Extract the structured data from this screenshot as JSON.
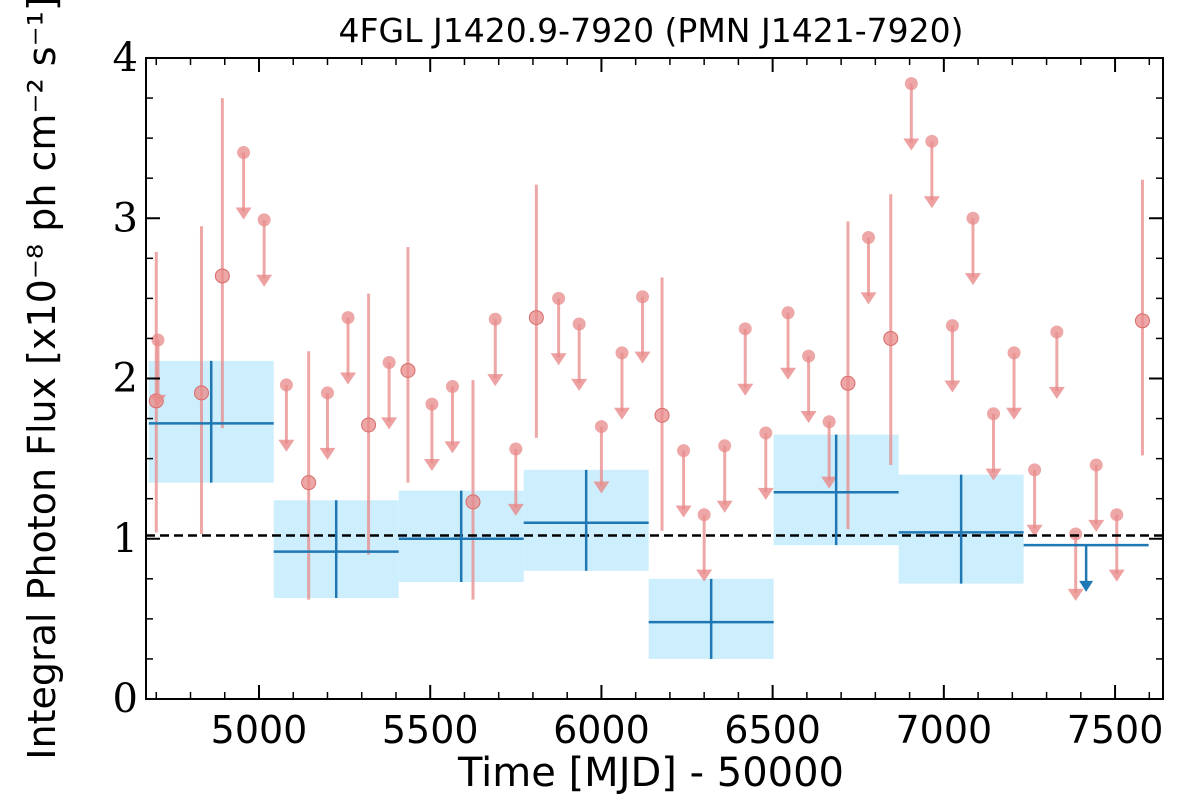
{
  "chart_data": {
    "type": "scatter",
    "title": "4FGL J1420.9-7920 (PMN J1421-7920)",
    "xlabel": "Time [MJD] - 50000",
    "ylabel": "Integral Photon Flux [x10⁻⁸ ph cm⁻² s⁻¹]",
    "xlim": [
      4670,
      7640
    ],
    "ylim": [
      0,
      4
    ],
    "xticks": [
      5000,
      5500,
      6000,
      6500,
      7000,
      7500
    ],
    "yticks": [
      0,
      1,
      2,
      3,
      4
    ],
    "xtick_labels": [
      "5000",
      "5500",
      "6000",
      "6500",
      "7000",
      "7500"
    ],
    "ytick_labels": [
      "0",
      "1",
      "2",
      "3",
      "4"
    ],
    "grid": false,
    "reference_line": {
      "y": 1.02,
      "style": "dashed",
      "color": "#000000"
    },
    "colors": {
      "short_bins": "#e88a8a",
      "long_bins": "#1f77b4",
      "long_bins_band": "#cdeefc"
    },
    "series": [
      {
        "points": [
          {
            "x": 4700,
            "y": 1.86,
            "yerr_lo": 0.82,
            "yerr_hi": 0.93
          },
          {
            "x": 4832,
            "y": 1.91,
            "yerr_lo": 0.88,
            "yerr_hi": 1.04
          },
          {
            "x": 4893,
            "y": 2.64,
            "yerr_lo": 0.95,
            "yerr_hi": 1.11
          },
          {
            "x": 5145,
            "y": 1.35,
            "yerr_lo": 0.73,
            "yerr_hi": 0.82
          },
          {
            "x": 5320,
            "y": 1.71,
            "yerr_lo": 0.81,
            "yerr_hi": 0.82
          },
          {
            "x": 5435,
            "y": 2.05,
            "yerr_lo": 0.7,
            "yerr_hi": 0.77
          },
          {
            "x": 5625,
            "y": 1.23,
            "yerr_lo": 0.61,
            "yerr_hi": 0.76
          },
          {
            "x": 5810,
            "y": 2.38,
            "yerr_lo": 0.75,
            "yerr_hi": 0.83
          },
          {
            "x": 6177,
            "y": 1.77,
            "yerr_lo": 0.72,
            "yerr_hi": 0.86
          },
          {
            "x": 6720,
            "y": 1.97,
            "yerr_lo": 0.91,
            "yerr_hi": 1.01
          },
          {
            "x": 6845,
            "y": 2.25,
            "yerr_lo": 0.79,
            "yerr_hi": 0.9
          },
          {
            "x": 7580,
            "y": 2.36,
            "yerr_lo": 0.84,
            "yerr_hi": 0.88
          }
        ],
        "upper_limits": [
          {
            "x": 4705,
            "y": 2.24
          },
          {
            "x": 4955,
            "y": 3.41
          },
          {
            "x": 5015,
            "y": 2.99
          },
          {
            "x": 5080,
            "y": 1.96
          },
          {
            "x": 5200,
            "y": 1.91
          },
          {
            "x": 5260,
            "y": 2.38
          },
          {
            "x": 5380,
            "y": 2.1
          },
          {
            "x": 5505,
            "y": 1.84
          },
          {
            "x": 5565,
            "y": 1.95
          },
          {
            "x": 5690,
            "y": 2.37
          },
          {
            "x": 5750,
            "y": 1.56
          },
          {
            "x": 5875,
            "y": 2.5
          },
          {
            "x": 5935,
            "y": 2.34
          },
          {
            "x": 6000,
            "y": 1.7
          },
          {
            "x": 6060,
            "y": 2.16
          },
          {
            "x": 6120,
            "y": 2.51
          },
          {
            "x": 6240,
            "y": 1.55
          },
          {
            "x": 6300,
            "y": 1.15
          },
          {
            "x": 6360,
            "y": 1.58
          },
          {
            "x": 6420,
            "y": 2.31
          },
          {
            "x": 6480,
            "y": 1.66
          },
          {
            "x": 6545,
            "y": 2.41
          },
          {
            "x": 6605,
            "y": 2.14
          },
          {
            "x": 6665,
            "y": 1.73
          },
          {
            "x": 6780,
            "y": 2.88
          },
          {
            "x": 6905,
            "y": 3.84
          },
          {
            "x": 6965,
            "y": 3.48
          },
          {
            "x": 7025,
            "y": 2.33
          },
          {
            "x": 7085,
            "y": 3.0
          },
          {
            "x": 7145,
            "y": 1.78
          },
          {
            "x": 7205,
            "y": 2.16
          },
          {
            "x": 7265,
            "y": 1.43
          },
          {
            "x": 7330,
            "y": 2.29
          },
          {
            "x": 7385,
            "y": 1.03
          },
          {
            "x": 7445,
            "y": 1.46
          },
          {
            "x": 7505,
            "y": 1.15
          }
        ]
      },
      {
        "bins": [
          {
            "x0": 4678,
            "x1": 5043,
            "y": 1.72,
            "lo": 1.35,
            "hi": 2.11
          },
          {
            "x0": 5043,
            "x1": 5408,
            "y": 0.92,
            "lo": 0.63,
            "hi": 1.24
          },
          {
            "x0": 5408,
            "x1": 5773,
            "y": 1.0,
            "lo": 0.73,
            "hi": 1.3
          },
          {
            "x0": 5773,
            "x1": 6138,
            "y": 1.1,
            "lo": 0.8,
            "hi": 1.43
          },
          {
            "x0": 6138,
            "x1": 6503,
            "y": 0.48,
            "lo": 0.25,
            "hi": 0.75
          },
          {
            "x0": 6503,
            "x1": 6868,
            "y": 1.29,
            "lo": 0.96,
            "hi": 1.65
          },
          {
            "x0": 6868,
            "x1": 7233,
            "y": 1.04,
            "lo": 0.72,
            "hi": 1.4
          },
          {
            "x0": 7233,
            "x1": 7598,
            "y": 0.96,
            "upper_limit": true
          }
        ]
      }
    ]
  }
}
